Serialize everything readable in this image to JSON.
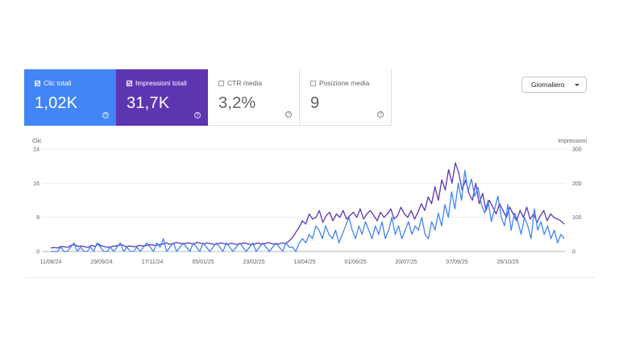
{
  "metrics": [
    {
      "label": "Clic totali",
      "value": "1,02K",
      "checked": true,
      "color": "#4285f4"
    },
    {
      "label": "Impressioni totali",
      "value": "31,7K",
      "checked": true,
      "color": "#5e35b1"
    },
    {
      "label": "CTR media",
      "value": "3,2%",
      "checked": false
    },
    {
      "label": "Posizione media",
      "value": "9",
      "checked": false
    }
  ],
  "help_glyph": "?",
  "granularity": {
    "selected": "Giornaliero"
  },
  "chart_data": {
    "type": "line",
    "left_axis": {
      "label": "Clic",
      "ticks": [
        "0",
        "8",
        "16",
        "24"
      ],
      "range": [
        0,
        24
      ]
    },
    "right_axis": {
      "label": "Impressioni",
      "ticks": [
        "0",
        "100",
        "200",
        "300"
      ],
      "range": [
        0,
        300
      ]
    },
    "x_tick_labels": [
      "11/08/24",
      "29/09/24",
      "17/11/24",
      "05/01/25",
      "23/02/25",
      "13/04/25",
      "01/06/25",
      "20/07/25",
      "07/09/25",
      "26/10/25"
    ],
    "grid": true,
    "series": [
      {
        "name": "Clic",
        "axis": "left",
        "color": "#4285f4",
        "values": [
          0,
          0,
          0,
          1,
          0,
          0,
          1,
          2,
          0,
          1,
          0,
          0,
          1,
          0,
          2,
          1,
          0,
          0,
          1,
          0,
          1,
          2,
          0,
          1,
          0,
          0,
          1,
          0,
          1,
          2,
          1,
          0,
          2,
          1,
          3,
          0,
          1,
          2,
          0,
          1,
          2,
          1,
          0,
          2,
          1,
          0,
          2,
          1,
          0,
          1,
          2,
          1,
          0,
          2,
          1,
          0,
          1,
          2,
          1,
          0,
          1,
          2,
          0,
          1,
          2,
          1,
          0,
          1,
          2,
          1,
          0,
          2,
          1,
          1,
          0,
          2,
          3,
          2,
          4,
          3,
          6,
          5,
          3,
          6,
          4,
          3,
          5,
          2,
          4,
          6,
          8,
          5,
          3,
          6,
          4,
          7,
          5,
          3,
          6,
          4,
          7,
          3,
          5,
          8,
          4,
          6,
          3,
          5,
          7,
          4,
          6,
          5,
          8,
          4,
          3,
          7,
          5,
          9,
          6,
          11,
          8,
          14,
          10,
          16,
          12,
          19,
          14,
          17,
          13,
          15,
          11,
          9,
          12,
          7,
          10,
          13,
          8,
          6,
          11,
          5,
          9,
          7,
          4,
          8,
          6,
          3,
          10,
          5,
          7,
          4,
          6,
          3,
          5,
          2,
          4,
          3
        ]
      },
      {
        "name": "Impressioni",
        "axis": "right",
        "color": "#5e35b1",
        "values": [
          10,
          12,
          10,
          15,
          14,
          12,
          18,
          20,
          15,
          16,
          14,
          12,
          18,
          15,
          22,
          16,
          14,
          12,
          15,
          16,
          18,
          20,
          14,
          16,
          15,
          14,
          18,
          16,
          17,
          20,
          19,
          18,
          20,
          22,
          25,
          21,
          23,
          26,
          24,
          22,
          25,
          24,
          21,
          27,
          24,
          22,
          25,
          23,
          21,
          22,
          25,
          23,
          20,
          24,
          22,
          21,
          23,
          25,
          22,
          20,
          22,
          25,
          21,
          23,
          26,
          23,
          21,
          22,
          25,
          23,
          30,
          40,
          55,
          70,
          90,
          80,
          110,
          95,
          100,
          120,
          85,
          105,
          115,
          90,
          110,
          100,
          120,
          95,
          105,
          115,
          100,
          125,
          95,
          110,
          120,
          105,
          90,
          115,
          100,
          110,
          125,
          95,
          105,
          130,
          110,
          100,
          120,
          95,
          115,
          140,
          120,
          160,
          140,
          190,
          150,
          210,
          180,
          240,
          200,
          260,
          230,
          180,
          210,
          170,
          150,
          200,
          140,
          170,
          120,
          150,
          130,
          110,
          140,
          120,
          100,
          130,
          110,
          90,
          120,
          100,
          130,
          95,
          110,
          85,
          105,
          120,
          90,
          110,
          100,
          95,
          90,
          80
        ]
      }
    ]
  }
}
